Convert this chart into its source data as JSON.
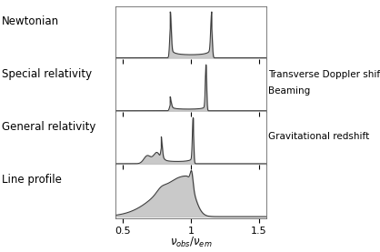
{
  "xlabel": "$\\nu_{obs} / \\nu_{em}$",
  "xlim": [
    0.45,
    1.55
  ],
  "xticks": [
    0.5,
    1.0,
    1.5
  ],
  "xticklabels": [
    "0.5",
    "1",
    "1.5"
  ],
  "panel_labels_left": [
    "Newtonian",
    "Special relativity",
    "General relativity",
    "Line profile"
  ],
  "right_labels_sr": [
    "Transverse Doppler shift",
    "Beaming"
  ],
  "right_labels_gr": [
    "Gravitational redshift"
  ],
  "line_color": "#555555",
  "fill_color": "#c8c8c8",
  "font_size": 8.5,
  "fig_width": 4.18,
  "fig_height": 2.77,
  "dpi": 100
}
